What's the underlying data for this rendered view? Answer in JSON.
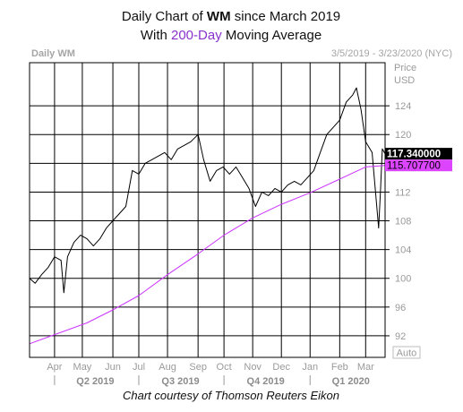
{
  "chart_data": {
    "type": "line",
    "title_parts": {
      "line1_prefix": "Daily Chart of ",
      "ticker": "WM",
      "line1_suffix": " since March 2019",
      "line2_prefix": "With ",
      "ma_label": "200-Day",
      "line2_suffix": " Moving Average"
    },
    "header_left": "Daily WM",
    "header_right": "3/5/2019 - 3/23/2020 (NYC)",
    "axis_label": [
      "Price",
      "USD"
    ],
    "ylim": [
      89,
      130
    ],
    "yticks": [
      92,
      96,
      100,
      104,
      108,
      112,
      116,
      120,
      124
    ],
    "xlim": [
      "2019-03-05",
      "2020-03-23"
    ],
    "months": [
      {
        "label": "Apr",
        "date": "2019-04-01"
      },
      {
        "label": "May",
        "date": "2019-05-01"
      },
      {
        "label": "Jun",
        "date": "2019-06-03"
      },
      {
        "label": "Jul",
        "date": "2019-07-01"
      },
      {
        "label": "Aug",
        "date": "2019-08-01"
      },
      {
        "label": "Sep",
        "date": "2019-09-03"
      },
      {
        "label": "Oct",
        "date": "2019-10-01"
      },
      {
        "label": "Nov",
        "date": "2019-11-01"
      },
      {
        "label": "Dec",
        "date": "2019-12-02"
      },
      {
        "label": "Jan",
        "date": "2020-01-02"
      },
      {
        "label": "Feb",
        "date": "2020-02-03"
      },
      {
        "label": "Mar",
        "date": "2020-03-02"
      }
    ],
    "quarters": [
      {
        "label": "Q2 2019",
        "date": "2019-05-15"
      },
      {
        "label": "Q3 2019",
        "date": "2019-08-15"
      },
      {
        "label": "Q4 2019",
        "date": "2019-11-15"
      },
      {
        "label": "Q1 2020",
        "date": "2020-02-15"
      }
    ],
    "quarter_dividers": [
      "2019-04-01",
      "2019-07-01",
      "2019-10-01",
      "2020-01-02"
    ],
    "scale_label": "Auto",
    "colors": {
      "price": "#000000",
      "ma": "#cc33ff",
      "ma_label_bg": "#dd44ff",
      "last_label_bg": "#000000",
      "grid": "#000000",
      "frame": "#000000"
    },
    "last_price_label": "117.340000",
    "last_price": 117.34,
    "ma_value_label": "115.707700",
    "ma_value": 115.7077,
    "series": [
      {
        "role": "price",
        "points": [
          {
            "d": "2019-03-05",
            "v": 100.0
          },
          {
            "d": "2019-03-11",
            "v": 99.3
          },
          {
            "d": "2019-03-18",
            "v": 100.5
          },
          {
            "d": "2019-03-25",
            "v": 101.5
          },
          {
            "d": "2019-04-01",
            "v": 103.0
          },
          {
            "d": "2019-04-08",
            "v": 102.5
          },
          {
            "d": "2019-04-11",
            "v": 98.0
          },
          {
            "d": "2019-04-15",
            "v": 103.0
          },
          {
            "d": "2019-04-22",
            "v": 105.0
          },
          {
            "d": "2019-04-29",
            "v": 106.0
          },
          {
            "d": "2019-05-06",
            "v": 105.5
          },
          {
            "d": "2019-05-13",
            "v": 104.5
          },
          {
            "d": "2019-05-20",
            "v": 105.5
          },
          {
            "d": "2019-05-27",
            "v": 107.0
          },
          {
            "d": "2019-06-03",
            "v": 108.0
          },
          {
            "d": "2019-06-10",
            "v": 109.0
          },
          {
            "d": "2019-06-17",
            "v": 110.0
          },
          {
            "d": "2019-06-24",
            "v": 115.0
          },
          {
            "d": "2019-07-01",
            "v": 114.5
          },
          {
            "d": "2019-07-08",
            "v": 116.0
          },
          {
            "d": "2019-07-15",
            "v": 116.5
          },
          {
            "d": "2019-07-22",
            "v": 117.0
          },
          {
            "d": "2019-07-29",
            "v": 117.5
          },
          {
            "d": "2019-08-05",
            "v": 116.5
          },
          {
            "d": "2019-08-12",
            "v": 118.0
          },
          {
            "d": "2019-08-19",
            "v": 118.5
          },
          {
            "d": "2019-08-26",
            "v": 119.0
          },
          {
            "d": "2019-09-03",
            "v": 120.0
          },
          {
            "d": "2019-09-09",
            "v": 116.5
          },
          {
            "d": "2019-09-16",
            "v": 113.5
          },
          {
            "d": "2019-09-23",
            "v": 115.0
          },
          {
            "d": "2019-09-30",
            "v": 115.5
          },
          {
            "d": "2019-10-07",
            "v": 114.5
          },
          {
            "d": "2019-10-14",
            "v": 115.5
          },
          {
            "d": "2019-10-21",
            "v": 114.0
          },
          {
            "d": "2019-10-28",
            "v": 112.5
          },
          {
            "d": "2019-11-04",
            "v": 110.0
          },
          {
            "d": "2019-11-11",
            "v": 112.0
          },
          {
            "d": "2019-11-18",
            "v": 111.5
          },
          {
            "d": "2019-11-25",
            "v": 112.5
          },
          {
            "d": "2019-12-02",
            "v": 112.0
          },
          {
            "d": "2019-12-09",
            "v": 113.0
          },
          {
            "d": "2019-12-16",
            "v": 113.5
          },
          {
            "d": "2019-12-23",
            "v": 113.0
          },
          {
            "d": "2019-12-30",
            "v": 114.0
          },
          {
            "d": "2020-01-06",
            "v": 115.0
          },
          {
            "d": "2020-01-13",
            "v": 117.5
          },
          {
            "d": "2020-01-20",
            "v": 120.0
          },
          {
            "d": "2020-01-27",
            "v": 121.0
          },
          {
            "d": "2020-02-03",
            "v": 122.0
          },
          {
            "d": "2020-02-10",
            "v": 124.5
          },
          {
            "d": "2020-02-17",
            "v": 125.5
          },
          {
            "d": "2020-02-21",
            "v": 126.5
          },
          {
            "d": "2020-02-26",
            "v": 123.5
          },
          {
            "d": "2020-03-02",
            "v": 119.0
          },
          {
            "d": "2020-03-09",
            "v": 117.5
          },
          {
            "d": "2020-03-16",
            "v": 107.0
          },
          {
            "d": "2020-03-18",
            "v": 112.0
          },
          {
            "d": "2020-03-20",
            "v": 118.0
          },
          {
            "d": "2020-03-23",
            "v": 117.34
          }
        ]
      },
      {
        "role": "ma",
        "points": [
          {
            "d": "2019-03-05",
            "v": 90.9
          },
          {
            "d": "2019-05-06",
            "v": 93.8
          },
          {
            "d": "2019-06-03",
            "v": 95.6
          },
          {
            "d": "2019-07-01",
            "v": 97.6
          },
          {
            "d": "2019-08-01",
            "v": 100.5
          },
          {
            "d": "2019-09-03",
            "v": 103.4
          },
          {
            "d": "2019-10-01",
            "v": 106.0
          },
          {
            "d": "2019-11-01",
            "v": 108.4
          },
          {
            "d": "2019-12-02",
            "v": 110.3
          },
          {
            "d": "2020-01-02",
            "v": 111.9
          },
          {
            "d": "2020-02-03",
            "v": 113.8
          },
          {
            "d": "2020-03-02",
            "v": 115.5
          },
          {
            "d": "2020-03-23",
            "v": 115.7077
          }
        ]
      }
    ],
    "footer": "Chart courtesy of Thomson Reuters Eikon"
  }
}
